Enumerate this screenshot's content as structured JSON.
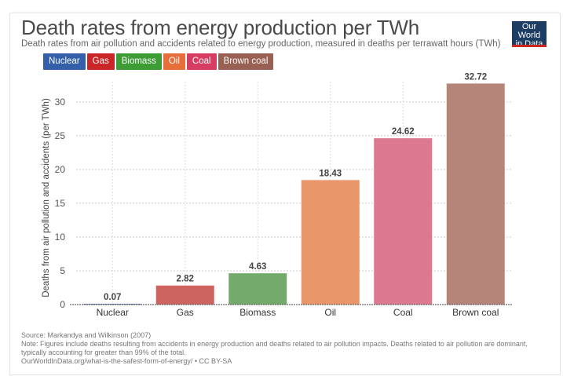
{
  "header": {
    "title": "Death rates from energy production per TWh",
    "subtitle": "Death rates from air pollution and accidents related to energy production, measured in deaths per terrawatt hours (TWh)",
    "logo_line1": "Our World",
    "logo_line2": "in Data"
  },
  "legend": [
    {
      "label": "Nuclear",
      "color": "#3360a9"
    },
    {
      "label": "Gas",
      "color": "#ca2628"
    },
    {
      "label": "Biomass",
      "color": "#3e9c35"
    },
    {
      "label": "Oil",
      "color": "#e56e3b"
    },
    {
      "label": "Coal",
      "color": "#d73c62"
    },
    {
      "label": "Brown coal",
      "color": "#996054"
    }
  ],
  "chart_data": {
    "type": "bar",
    "title": "Death rates from energy production per TWh",
    "xlabel": "",
    "ylabel": "Deaths from air pollution and accidents (per TWh)",
    "categories": [
      "Nuclear",
      "Gas",
      "Biomass",
      "Oil",
      "Coal",
      "Brown coal"
    ],
    "values": [
      0.07,
      2.82,
      4.63,
      18.43,
      24.62,
      32.72
    ],
    "value_labels": [
      "0.07",
      "2.82",
      "4.63",
      "18.43",
      "24.62",
      "32.72"
    ],
    "colors": [
      "#5b7fbf",
      "#cd6460",
      "#74aa6c",
      "#e8966a",
      "#dc7890",
      "#b6857a"
    ],
    "ylim": [
      0,
      33
    ],
    "yticks": [
      0,
      5,
      10,
      15,
      20,
      25,
      30
    ],
    "grid": true,
    "legend_placement": "top-left"
  },
  "footer": {
    "source": "Source: Markandya and Wilkinson (2007)",
    "note_line1": "Note: Figures include deaths resulting from accidents in energy production and deaths related to air pollution impacts. Deaths related to air pollution are dominant,",
    "note_line2": "typically accounting for greater than 99% of the total.",
    "url": "OurWorldInData.org/what-is-the-safest-form-of-energy/ • CC BY-SA"
  }
}
